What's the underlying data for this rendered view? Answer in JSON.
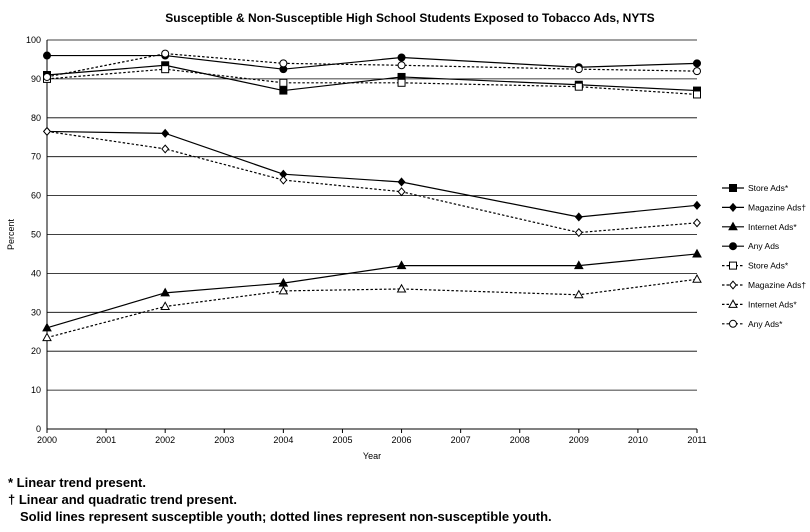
{
  "chart_data": {
    "type": "line",
    "title": "Susceptible & Non-Susceptible  High School Students Exposed to Tobacco Ads, NYTS",
    "xlabel": "Year",
    "ylabel": "Percent",
    "xlim": [
      2000,
      2011
    ],
    "ylim": [
      0,
      100
    ],
    "x_ticks": [
      "2000",
      "2001",
      "2002",
      "2003",
      "2004",
      "2005",
      "2006",
      "2007",
      "2008",
      "2009",
      "2010",
      "2011"
    ],
    "y_ticks": [
      "0",
      "10",
      "20",
      "30",
      "40",
      "50",
      "60",
      "70",
      "80",
      "90",
      "100"
    ],
    "x": [
      2000,
      2002,
      2004,
      2006,
      2009,
      2011
    ],
    "grid": "horizontal",
    "legend_position": "right",
    "series": [
      {
        "name": "Store Ads*",
        "values": [
          91,
          93.5,
          87,
          90.5,
          88.5,
          87
        ],
        "line": "solid",
        "marker": "square",
        "filled": true
      },
      {
        "name": "Magazine Ads†",
        "values": [
          76.5,
          76,
          65.5,
          63.5,
          54.5,
          57.5
        ],
        "line": "solid",
        "marker": "diamond",
        "filled": true
      },
      {
        "name": "Internet Ads*",
        "values": [
          26,
          35,
          37.5,
          42,
          42,
          45
        ],
        "line": "solid",
        "marker": "triangle",
        "filled": true
      },
      {
        "name": "Any Ads",
        "values": [
          96,
          96,
          92.5,
          95.5,
          93,
          94
        ],
        "line": "solid",
        "marker": "circle",
        "filled": true
      },
      {
        "name": "Store Ads*",
        "values": [
          90,
          92.5,
          89,
          89,
          88,
          86
        ],
        "line": "dotted",
        "marker": "square",
        "filled": false
      },
      {
        "name": "Magazine Ads†",
        "values": [
          76.5,
          72,
          64,
          61,
          50.5,
          53
        ],
        "line": "dotted",
        "marker": "diamond",
        "filled": false
      },
      {
        "name": "Internet Ads*",
        "values": [
          23.5,
          31.5,
          35.5,
          36,
          34.5,
          38.5
        ],
        "line": "dotted",
        "marker": "triangle",
        "filled": false
      },
      {
        "name": "Any Ads*",
        "values": [
          90.5,
          96.5,
          94,
          93.5,
          92.5,
          92
        ],
        "line": "dotted",
        "marker": "circle",
        "filled": false
      }
    ]
  },
  "notes": [
    "* Linear trend present.",
    "† Linear and quadratic trend present.",
    "Solid lines represent susceptible youth; dotted lines represent non-susceptible youth."
  ]
}
